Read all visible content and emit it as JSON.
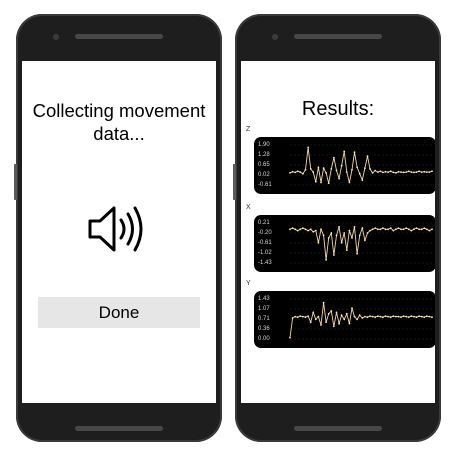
{
  "collecting_screen": {
    "title": "Collecting movement data...",
    "speaker_icon": "speaker-sound-icon",
    "done_button_label": "Done"
  },
  "results_screen": {
    "title": "Results:",
    "colors": {
      "plot_background": "#000000",
      "trace": "#f3d6a6",
      "point": "#ffe6b8"
    }
  },
  "chart_data": [
    {
      "type": "line",
      "axis_name": "Z",
      "y_ticks": [
        "1.90",
        "1.28",
        "0.65",
        "0.02",
        "-0.61"
      ],
      "ylim": [
        -0.61,
        1.9
      ],
      "values": [
        0.15,
        0.22,
        0.18,
        0.25,
        0.2,
        0.1,
        0.35,
        1.75,
        0.4,
        0.2,
        -0.4,
        0.5,
        -0.45,
        0.45,
        0.15,
        -0.5,
        0.4,
        1.1,
        0.3,
        -0.2,
        0.6,
        1.5,
        0.2,
        -0.45,
        0.35,
        1.45,
        0.5,
        0.1,
        -0.3,
        0.45,
        1.2,
        0.4,
        0.15,
        0.3,
        0.2,
        0.25,
        0.18,
        0.22,
        0.2,
        0.25,
        0.18,
        0.15,
        0.22,
        0.2,
        0.18,
        0.2,
        0.25,
        0.2,
        0.18,
        0.2,
        0.25,
        0.2,
        0.22,
        0.2,
        0.2,
        0.25
      ]
    },
    {
      "type": "line",
      "axis_name": "X",
      "y_ticks": [
        "0.21",
        "-0.20",
        "-0.61",
        "-1.02",
        "-1.43"
      ],
      "ylim": [
        -1.43,
        0.21
      ],
      "values": [
        -0.05,
        0.0,
        -0.05,
        -0.1,
        -0.05,
        0.0,
        -0.05,
        -0.1,
        -0.05,
        -0.15,
        -0.1,
        -0.6,
        -0.05,
        -0.3,
        -1.3,
        -0.4,
        -0.2,
        -1.1,
        -0.3,
        0.05,
        -0.6,
        -0.2,
        -0.9,
        -0.1,
        -0.4,
        0.05,
        -1.05,
        -0.3,
        0.0,
        -0.5,
        -0.2,
        -0.1,
        -0.05,
        0.0,
        -0.05,
        -0.05,
        0.0,
        -0.05,
        -0.05,
        0.0,
        -0.1,
        -0.05,
        0.0,
        -0.05,
        -0.05,
        0.0,
        -0.05,
        -0.1,
        -0.05,
        0.0,
        -0.05,
        -0.05,
        0.0,
        -0.05,
        -0.1,
        -0.05
      ]
    },
    {
      "type": "line",
      "axis_name": "Y",
      "y_ticks": [
        "1.43",
        "1.07",
        "0.71",
        "0.36",
        "0.00"
      ],
      "ylim": [
        0.0,
        1.43
      ],
      "values": [
        0.05,
        0.75,
        0.8,
        0.78,
        0.82,
        0.8,
        0.78,
        0.82,
        0.6,
        0.95,
        0.7,
        0.8,
        0.5,
        1.3,
        0.6,
        0.9,
        1.0,
        0.45,
        0.95,
        0.55,
        0.85,
        0.7,
        0.9,
        0.55,
        1.1,
        0.8,
        0.7,
        0.85,
        0.75,
        0.8,
        0.78,
        0.82,
        0.8,
        0.78,
        0.82,
        0.8,
        0.78,
        0.82,
        0.8,
        0.78,
        0.82,
        0.8,
        0.8,
        0.78,
        0.82,
        0.8,
        0.78,
        0.82,
        0.8,
        0.78,
        0.82,
        0.8,
        0.78,
        0.82,
        0.8,
        0.78
      ]
    }
  ]
}
